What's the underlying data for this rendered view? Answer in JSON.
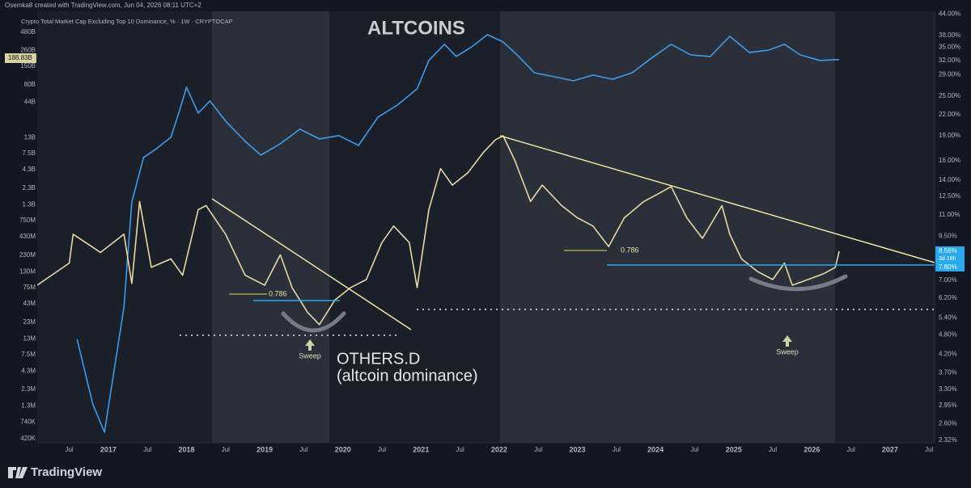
{
  "chart_data": {
    "type": "line",
    "credit": "Osemka8 created with TradingView.com, Jun 04, 2026 08:11 UTC+2",
    "subtitle": "Crypto Total Market Cap Excluding Top 10 Dominance, % · 1W · CRYPTOCAP",
    "annotations": [
      "(altcoin dominance)",
      "Sweep",
      "Sweep",
      "0.786",
      "0.786"
    ],
    "price_labels": [
      "188.83B",
      "8.56%",
      "3d 18h",
      "7.80%"
    ],
    "brand": "TradingView",
    "log_scale": true,
    "grid": false,
    "xlim": [
      2016.09,
      2027.57
    ],
    "xticks": [
      {
        "value": 2016.5,
        "label": "Jul"
      },
      {
        "value": 2017,
        "label": "2017"
      },
      {
        "value": 2017.5,
        "label": "Jul"
      },
      {
        "value": 2018,
        "label": "2018"
      },
      {
        "value": 2018.5,
        "label": "Jul"
      },
      {
        "value": 2019,
        "label": "2019"
      },
      {
        "value": 2019.5,
        "label": "Jul"
      },
      {
        "value": 2020,
        "label": "2020"
      },
      {
        "value": 2020.5,
        "label": "Jul"
      },
      {
        "value": 2021,
        "label": "2021"
      },
      {
        "value": 2021.5,
        "label": "Jul"
      },
      {
        "value": 2022,
        "label": "2022"
      },
      {
        "value": 2022.5,
        "label": "Jul"
      },
      {
        "value": 2023,
        "label": "2023"
      },
      {
        "value": 2023.5,
        "label": "Jul"
      },
      {
        "value": 2024,
        "label": "2024"
      },
      {
        "value": 2024.5,
        "label": "Jul"
      },
      {
        "value": 2025,
        "label": "2025"
      },
      {
        "value": 2025.5,
        "label": "Jul"
      },
      {
        "value": 2026,
        "label": "2026"
      },
      {
        "value": 2026.5,
        "label": "Jul"
      },
      {
        "value": 2027,
        "label": "2027"
      },
      {
        "value": 2027.5,
        "label": "Jul"
      }
    ],
    "ylim": [
      366000,
      989000000000
    ],
    "yticks": [
      {
        "value": 480000000000,
        "label": "480B"
      },
      {
        "value": 260000000000,
        "label": "260B"
      },
      {
        "value": 150000000000,
        "label": "150B"
      },
      {
        "value": 80000000000,
        "label": "80B"
      },
      {
        "value": 44000000000,
        "label": "44B"
      },
      {
        "value": 13000000000,
        "label": "13B"
      },
      {
        "value": 7500000000,
        "label": "7.5B"
      },
      {
        "value": 4300000000,
        "label": "4.3B"
      },
      {
        "value": 2300000000,
        "label": "2.3B"
      },
      {
        "value": 1300000000,
        "label": "1.3B"
      },
      {
        "value": 750000000,
        "label": "750M"
      },
      {
        "value": 430000000,
        "label": "430M"
      },
      {
        "value": 230000000,
        "label": "230M"
      },
      {
        "value": 130000000,
        "label": "130M"
      },
      {
        "value": 75000000,
        "label": "75M"
      },
      {
        "value": 43000000,
        "label": "43M"
      },
      {
        "value": 23000000,
        "label": "23M"
      },
      {
        "value": 13000000,
        "label": "13M"
      },
      {
        "value": 7500000,
        "label": "7.5M"
      },
      {
        "value": 4300000,
        "label": "4.3M"
      },
      {
        "value": 2300000,
        "label": "2.3M"
      },
      {
        "value": 1300000,
        "label": "1.3M"
      },
      {
        "value": 740000,
        "label": "740K"
      },
      {
        "value": 420000,
        "label": "420K"
      }
    ],
    "y2lim": [
      2.28,
      44.9
    ],
    "y2ticks": [
      {
        "value": 44,
        "label": "44.00%"
      },
      {
        "value": 38,
        "label": "38.00%"
      },
      {
        "value": 35,
        "label": "35.00%"
      },
      {
        "value": 32,
        "label": "32.00%"
      },
      {
        "value": 29,
        "label": "29.00%"
      },
      {
        "value": 25,
        "label": "25.00%"
      },
      {
        "value": 22,
        "label": "22.00%"
      },
      {
        "value": 19,
        "label": "19.00%"
      },
      {
        "value": 16,
        "label": "16.00%"
      },
      {
        "value": 14,
        "label": "14.00%"
      },
      {
        "value": 12.5,
        "label": "12.50%"
      },
      {
        "value": 11,
        "label": "11.00%"
      },
      {
        "value": 9.5,
        "label": "9.50%"
      },
      {
        "value": 7,
        "label": "7.00%"
      },
      {
        "value": 6.2,
        "label": "6.20%"
      },
      {
        "value": 5.4,
        "label": "5.40%"
      },
      {
        "value": 4.8,
        "label": "4.80%"
      },
      {
        "value": 4.2,
        "label": "4.20%"
      },
      {
        "value": 3.7,
        "label": "3.70%"
      },
      {
        "value": 3.3,
        "label": "3.30%"
      },
      {
        "value": 2.95,
        "label": "2.95%"
      },
      {
        "value": 2.6,
        "label": "2.60%"
      },
      {
        "value": 2.32,
        "label": "2.32%"
      }
    ],
    "series": [
      {
        "name": "ALTCOINS",
        "color": "#3d9be9",
        "x": [
          2016.6,
          2016.8,
          2016.95,
          2017.2,
          2017.3,
          2017.45,
          2017.6,
          2017.8,
          2017.9,
          2018.0,
          2018.15,
          2018.3,
          2018.5,
          2018.75,
          2018.95,
          2019.2,
          2019.45,
          2019.7,
          2019.95,
          2020.2,
          2020.45,
          2020.7,
          2020.95,
          2021.1,
          2021.3,
          2021.45,
          2021.65,
          2021.85,
          2022.05,
          2022.25,
          2022.45,
          2022.7,
          2022.95,
          2023.2,
          2023.45,
          2023.7,
          2023.95,
          2024.2,
          2024.45,
          2024.7,
          2024.95,
          2025.2,
          2025.45,
          2025.65,
          2025.85,
          2026.1,
          2026.35
        ],
        "values": [
          12700000,
          1390000,
          525000,
          38600000,
          1420000000,
          6550000000,
          8600000000,
          13100000000,
          30000000000,
          73000000000,
          30000000000,
          45600000000,
          22800000000,
          11400000000,
          7100000000,
          10500000000,
          17300000000,
          12400000000,
          13900000000,
          9900000000,
          26200000000,
          39700000000,
          69200000000,
          183000000000,
          319000000000,
          210000000000,
          293000000000,
          444000000000,
          346000000000,
          210000000000,
          120000000000,
          105000000000,
          91000000000,
          111000000000,
          96000000000,
          120000000000,
          199000000000,
          319000000000,
          222000000000,
          210000000000,
          420000000000,
          241000000000,
          262000000000,
          319000000000,
          222000000000,
          183000000000,
          189000000000
        ]
      },
      {
        "name": "OTHERS.D",
        "color": "#e6d9a2",
        "axis": "y2",
        "x": [
          2016.09,
          2016.5,
          2016.55,
          2016.9,
          2017.2,
          2017.3,
          2017.4,
          2017.55,
          2017.8,
          2017.95,
          2018.15,
          2018.25,
          2018.5,
          2018.75,
          2019.0,
          2019.2,
          2019.35,
          2019.55,
          2019.7,
          2019.9,
          2020.1,
          2020.3,
          2020.5,
          2020.65,
          2020.85,
          2020.95,
          2021.1,
          2021.25,
          2021.4,
          2021.6,
          2021.8,
          2021.95,
          2022.05,
          2022.2,
          2022.4,
          2022.55,
          2022.8,
          2023.0,
          2023.2,
          2023.4,
          2023.6,
          2023.85,
          2024.05,
          2024.2,
          2024.4,
          2024.6,
          2024.85,
          2024.95,
          2025.1,
          2025.3,
          2025.5,
          2025.65,
          2025.75,
          2025.95,
          2026.15,
          2026.3,
          2026.35
        ],
        "values": [
          6.77,
          7.89,
          9.63,
          8.49,
          9.63,
          6.85,
          12.07,
          7.66,
          8.12,
          7.25,
          11.41,
          11.73,
          9.63,
          7.25,
          6.77,
          8.35,
          6.66,
          5.61,
          5.16,
          6.12,
          6.66,
          7.04,
          9.09,
          10.19,
          9.09,
          6.66,
          11.41,
          15.15,
          13.52,
          14.73,
          16.96,
          18.47,
          19.0,
          16.04,
          12.07,
          13.52,
          11.73,
          10.78,
          10.19,
          8.84,
          10.78,
          12.07,
          12.78,
          13.38,
          10.78,
          9.36,
          11.73,
          9.63,
          8.12,
          7.45,
          7.04,
          7.89,
          6.77,
          7.04,
          7.33,
          7.66,
          8.56
        ]
      }
    ]
  }
}
